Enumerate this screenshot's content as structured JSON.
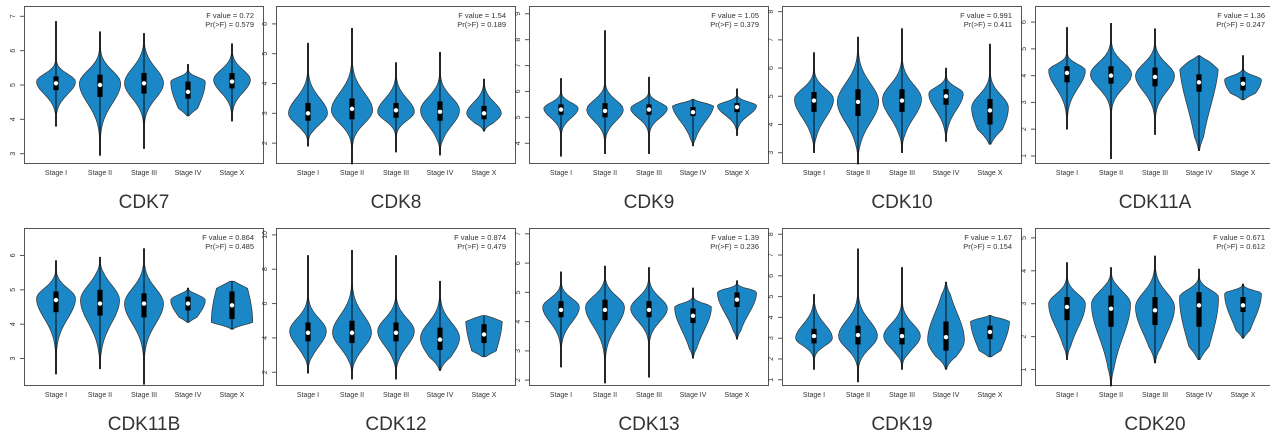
{
  "figure": {
    "colors": {
      "violin_fill": "#1b87c6",
      "violin_stroke": "#333333",
      "box": "#000000",
      "median": "#ffffff",
      "frame": "#555555",
      "text": "#333333"
    },
    "categories": [
      "Stage I",
      "Stage II",
      "Stage III",
      "Stage IV",
      "Stage X"
    ]
  },
  "chart_data": [
    {
      "type": "violin",
      "title": "CDK7",
      "f_value": "F value = 0.72",
      "pr_f": "Pr(>F) = 0.579",
      "categories": [
        "Stage I",
        "Stage II",
        "Stage III",
        "Stage IV",
        "Stage X"
      ],
      "yticks": [
        "3",
        "4",
        "5",
        "6",
        "7"
      ],
      "ylim": [
        2.7,
        7.3
      ],
      "series": [
        {
          "category": "Stage I",
          "min": 3.8,
          "q1": 4.85,
          "median": 5.05,
          "q3": 5.25,
          "max": 6.85,
          "mode": 5.1,
          "width": 0.85
        },
        {
          "category": "Stage II",
          "min": 2.95,
          "q1": 4.65,
          "median": 5.0,
          "q3": 5.3,
          "max": 6.55,
          "mode": 5.05,
          "width": 0.9
        },
        {
          "category": "Stage III",
          "min": 3.15,
          "q1": 4.75,
          "median": 5.05,
          "q3": 5.35,
          "max": 6.5,
          "mode": 5.05,
          "width": 0.85
        },
        {
          "category": "Stage IV",
          "min": 4.1,
          "q1": 4.6,
          "median": 4.8,
          "q3": 5.1,
          "max": 5.6,
          "mode": 5.1,
          "width": 0.75
        },
        {
          "category": "Stage X",
          "min": 3.95,
          "q1": 4.9,
          "median": 5.1,
          "q3": 5.35,
          "max": 6.2,
          "mode": 5.15,
          "width": 0.8
        }
      ]
    },
    {
      "type": "violin",
      "title": "CDK8",
      "f_value": "F value = 1.54",
      "pr_f": "Pr(>F) = 0.189",
      "categories": [
        "Stage I",
        "Stage II",
        "Stage III",
        "Stage IV",
        "Stage X"
      ],
      "yticks": [
        "2",
        "3",
        "4",
        "5",
        "6"
      ],
      "ylim": [
        1.3,
        6.6
      ],
      "series": [
        {
          "category": "Stage I",
          "min": 1.9,
          "q1": 2.75,
          "median": 3.0,
          "q3": 3.35,
          "max": 5.35,
          "mode": 3.0,
          "width": 0.85
        },
        {
          "category": "Stage II",
          "min": 1.3,
          "q1": 2.8,
          "median": 3.15,
          "q3": 3.5,
          "max": 5.85,
          "mode": 3.1,
          "width": 0.9
        },
        {
          "category": "Stage III",
          "min": 1.7,
          "q1": 2.85,
          "median": 3.1,
          "q3": 3.35,
          "max": 4.7,
          "mode": 3.05,
          "width": 0.8
        },
        {
          "category": "Stage IV",
          "min": 1.6,
          "q1": 2.75,
          "median": 3.05,
          "q3": 3.4,
          "max": 5.05,
          "mode": 3.1,
          "width": 0.85
        },
        {
          "category": "Stage X",
          "min": 2.4,
          "q1": 2.8,
          "median": 3.0,
          "q3": 3.25,
          "max": 4.15,
          "mode": 3.0,
          "width": 0.75
        }
      ]
    },
    {
      "type": "violin",
      "title": "CDK9",
      "f_value": "F value = 1.05",
      "pr_f": "Pr(>F) = 0.379",
      "categories": [
        "Stage I",
        "Stage II",
        "Stage III",
        "Stage IV",
        "Stage X"
      ],
      "yticks": [
        "4",
        "5",
        "6",
        "7",
        "8",
        "9"
      ],
      "ylim": [
        3.2,
        9.3
      ],
      "series": [
        {
          "category": "Stage I",
          "min": 3.5,
          "q1": 5.1,
          "median": 5.3,
          "q3": 5.5,
          "max": 6.5,
          "mode": 5.35,
          "width": 0.75
        },
        {
          "category": "Stage II",
          "min": 3.6,
          "q1": 5.0,
          "median": 5.25,
          "q3": 5.55,
          "max": 8.35,
          "mode": 5.3,
          "width": 0.8
        },
        {
          "category": "Stage III",
          "min": 3.6,
          "q1": 5.1,
          "median": 5.3,
          "q3": 5.5,
          "max": 6.55,
          "mode": 5.35,
          "width": 0.8
        },
        {
          "category": "Stage IV",
          "min": 3.9,
          "q1": 5.05,
          "median": 5.2,
          "q3": 5.4,
          "max": 5.7,
          "mode": 5.5,
          "width": 0.9
        },
        {
          "category": "Stage X",
          "min": 4.3,
          "q1": 5.2,
          "median": 5.4,
          "q3": 5.55,
          "max": 6.1,
          "mode": 5.45,
          "width": 0.85
        }
      ]
    },
    {
      "type": "violin",
      "title": "CDK10",
      "f_value": "F value = 0.991",
      "pr_f": "Pr(>F) = 0.411",
      "categories": [
        "Stage I",
        "Stage II",
        "Stage III",
        "Stage IV",
        "Stage X"
      ],
      "yticks": [
        "3",
        "4",
        "5",
        "6",
        "7",
        "8"
      ],
      "ylim": [
        2.6,
        8.2
      ],
      "series": [
        {
          "category": "Stage I",
          "min": 3.0,
          "q1": 4.45,
          "median": 4.85,
          "q3": 5.15,
          "max": 6.55,
          "mode": 4.9,
          "width": 0.85
        },
        {
          "category": "Stage II",
          "min": 2.6,
          "q1": 4.3,
          "median": 4.8,
          "q3": 5.25,
          "max": 7.1,
          "mode": 4.8,
          "width": 0.9
        },
        {
          "category": "Stage III",
          "min": 3.0,
          "q1": 4.45,
          "median": 4.85,
          "q3": 5.25,
          "max": 7.4,
          "mode": 4.9,
          "width": 0.85
        },
        {
          "category": "Stage IV",
          "min": 3.4,
          "q1": 4.7,
          "median": 5.0,
          "q3": 5.25,
          "max": 6.0,
          "mode": 5.1,
          "width": 0.75
        },
        {
          "category": "Stage X",
          "min": 3.3,
          "q1": 4.0,
          "median": 4.5,
          "q3": 4.9,
          "max": 6.85,
          "mode": 4.6,
          "width": 0.8
        }
      ]
    },
    {
      "type": "violin",
      "title": "CDK11A",
      "f_value": "F value = 1.36",
      "pr_f": "Pr(>F) = 0.247",
      "categories": [
        "Stage I",
        "Stage II",
        "Stage III",
        "Stage IV",
        "Stage X"
      ],
      "yticks": [
        "1",
        "2",
        "3",
        "4",
        "5",
        "6"
      ],
      "ylim": [
        0.7,
        6.6
      ],
      "series": [
        {
          "category": "Stage I",
          "min": 2.0,
          "q1": 3.75,
          "median": 4.1,
          "q3": 4.35,
          "max": 5.8,
          "mode": 4.2,
          "width": 0.8
        },
        {
          "category": "Stage II",
          "min": 0.9,
          "q1": 3.7,
          "median": 4.0,
          "q3": 4.35,
          "max": 5.95,
          "mode": 4.05,
          "width": 0.9
        },
        {
          "category": "Stage III",
          "min": 1.8,
          "q1": 3.6,
          "median": 3.95,
          "q3": 4.3,
          "max": 5.75,
          "mode": 4.0,
          "width": 0.85
        },
        {
          "category": "Stage IV",
          "min": 1.2,
          "q1": 3.4,
          "median": 3.75,
          "q3": 4.05,
          "max": 4.75,
          "mode": 4.55,
          "width": 0.85
        },
        {
          "category": "Stage X",
          "min": 3.1,
          "q1": 3.45,
          "median": 3.7,
          "q3": 3.95,
          "max": 4.75,
          "mode": 3.85,
          "width": 0.8
        }
      ]
    },
    {
      "type": "violin",
      "title": "CDK11B",
      "f_value": "F value = 0.864",
      "pr_f": "Pr(>F) = 0.485",
      "categories": [
        "Stage I",
        "Stage II",
        "Stage III",
        "Stage IV",
        "Stage X"
      ],
      "yticks": [
        "3",
        "4",
        "5",
        "6"
      ],
      "ylim": [
        2.2,
        6.8
      ],
      "series": [
        {
          "category": "Stage I",
          "min": 2.55,
          "q1": 4.35,
          "median": 4.7,
          "q3": 4.95,
          "max": 5.85,
          "mode": 4.75,
          "width": 0.85
        },
        {
          "category": "Stage II",
          "min": 2.7,
          "q1": 4.25,
          "median": 4.6,
          "q3": 5.0,
          "max": 5.95,
          "mode": 4.7,
          "width": 0.85
        },
        {
          "category": "Stage III",
          "min": 2.25,
          "q1": 4.2,
          "median": 4.6,
          "q3": 4.9,
          "max": 6.2,
          "mode": 4.6,
          "width": 0.85
        },
        {
          "category": "Stage IV",
          "min": 4.05,
          "q1": 4.4,
          "median": 4.6,
          "q3": 4.8,
          "max": 5.05,
          "mode": 4.7,
          "width": 0.75
        },
        {
          "category": "Stage X",
          "min": 3.85,
          "q1": 4.15,
          "median": 4.55,
          "q3": 4.95,
          "max": 5.25,
          "mode": 4.05,
          "width": 0.9
        }
      ]
    },
    {
      "type": "violin",
      "title": "CDK12",
      "f_value": "F value = 0.874",
      "pr_f": "Pr(>F) = 0.479",
      "categories": [
        "Stage I",
        "Stage II",
        "Stage III",
        "Stage IV",
        "Stage X"
      ],
      "yticks": [
        "2",
        "4",
        "6",
        "8",
        "10"
      ],
      "ylim": [
        1.2,
        10.4
      ],
      "series": [
        {
          "category": "Stage I",
          "min": 1.95,
          "q1": 3.8,
          "median": 4.3,
          "q3": 4.9,
          "max": 8.8,
          "mode": 4.4,
          "width": 0.8
        },
        {
          "category": "Stage II",
          "min": 1.6,
          "q1": 3.7,
          "median": 4.3,
          "q3": 5.0,
          "max": 9.1,
          "mode": 4.3,
          "width": 0.85
        },
        {
          "category": "Stage III",
          "min": 1.6,
          "q1": 3.8,
          "median": 4.3,
          "q3": 4.9,
          "max": 8.8,
          "mode": 4.4,
          "width": 0.8
        },
        {
          "category": "Stage IV",
          "min": 2.1,
          "q1": 3.3,
          "median": 3.9,
          "q3": 4.6,
          "max": 7.3,
          "mode": 4.0,
          "width": 0.85
        },
        {
          "category": "Stage X",
          "min": 2.9,
          "q1": 3.7,
          "median": 4.2,
          "q3": 4.8,
          "max": 5.3,
          "mode": 5.2,
          "width": 0.8
        }
      ]
    },
    {
      "type": "violin",
      "title": "CDK13",
      "f_value": "F value = 1.39",
      "pr_f": "Pr(>F) = 0.236",
      "categories": [
        "Stage I",
        "Stage II",
        "Stage III",
        "Stage IV",
        "Stage X"
      ],
      "yticks": [
        "2",
        "3",
        "4",
        "5",
        "6",
        "7"
      ],
      "ylim": [
        1.8,
        7.2
      ],
      "series": [
        {
          "category": "Stage I",
          "min": 2.45,
          "q1": 4.15,
          "median": 4.4,
          "q3": 4.7,
          "max": 5.7,
          "mode": 4.5,
          "width": 0.8
        },
        {
          "category": "Stage II",
          "min": 1.9,
          "q1": 4.05,
          "median": 4.4,
          "q3": 4.75,
          "max": 5.9,
          "mode": 4.5,
          "width": 0.85
        },
        {
          "category": "Stage III",
          "min": 2.1,
          "q1": 4.15,
          "median": 4.4,
          "q3": 4.7,
          "max": 5.85,
          "mode": 4.45,
          "width": 0.8
        },
        {
          "category": "Stage IV",
          "min": 2.75,
          "q1": 3.95,
          "median": 4.2,
          "q3": 4.45,
          "max": 5.15,
          "mode": 4.5,
          "width": 0.8
        },
        {
          "category": "Stage X",
          "min": 3.4,
          "q1": 4.5,
          "median": 4.75,
          "q3": 5.0,
          "max": 5.4,
          "mode": 5.0,
          "width": 0.85
        }
      ]
    },
    {
      "type": "violin",
      "title": "CDK19",
      "f_value": "F value = 1.67",
      "pr_f": "Pr(>F) = 0.154",
      "categories": [
        "Stage I",
        "Stage II",
        "Stage III",
        "Stage IV",
        "Stage X"
      ],
      "yticks": [
        "1",
        "2",
        "3",
        "4",
        "5",
        "6",
        "7",
        "8"
      ],
      "ylim": [
        0.7,
        8.3
      ],
      "series": [
        {
          "category": "Stage I",
          "min": 1.5,
          "q1": 2.75,
          "median": 3.1,
          "q3": 3.45,
          "max": 5.1,
          "mode": 3.0,
          "width": 0.8
        },
        {
          "category": "Stage II",
          "min": 0.9,
          "q1": 2.7,
          "median": 3.15,
          "q3": 3.6,
          "max": 7.3,
          "mode": 3.1,
          "width": 0.85
        },
        {
          "category": "Stage III",
          "min": 1.5,
          "q1": 2.7,
          "median": 3.1,
          "q3": 3.5,
          "max": 6.4,
          "mode": 3.1,
          "width": 0.8
        },
        {
          "category": "Stage IV",
          "min": 1.5,
          "q1": 2.4,
          "median": 3.05,
          "q3": 3.8,
          "max": 5.7,
          "mode": 2.9,
          "width": 0.8
        },
        {
          "category": "Stage X",
          "min": 2.1,
          "q1": 2.95,
          "median": 3.3,
          "q3": 3.6,
          "max": 4.1,
          "mode": 3.9,
          "width": 0.85
        }
      ]
    },
    {
      "type": "violin",
      "title": "CDK20",
      "f_value": "F value = 0.671",
      "pr_f": "Pr(>F) = 0.612",
      "categories": [
        "Stage I",
        "Stage II",
        "Stage III",
        "Stage IV",
        "Stage X"
      ],
      "yticks": [
        "1",
        "2",
        "3",
        "4",
        "5"
      ],
      "ylim": [
        0.5,
        5.3
      ],
      "series": [
        {
          "category": "Stage I",
          "min": 1.3,
          "q1": 2.5,
          "median": 2.9,
          "q3": 3.2,
          "max": 4.25,
          "mode": 3.0,
          "width": 0.8
        },
        {
          "category": "Stage II",
          "min": 0.5,
          "q1": 2.3,
          "median": 2.85,
          "q3": 3.25,
          "max": 4.1,
          "mode": 3.0,
          "width": 0.85
        },
        {
          "category": "Stage III",
          "min": 1.2,
          "q1": 2.35,
          "median": 2.8,
          "q3": 3.2,
          "max": 4.45,
          "mode": 2.9,
          "width": 0.85
        },
        {
          "category": "Stage IV",
          "min": 1.3,
          "q1": 2.3,
          "median": 2.95,
          "q3": 3.35,
          "max": 4.05,
          "mode": 3.2,
          "width": 0.85
        },
        {
          "category": "Stage X",
          "min": 1.95,
          "q1": 2.75,
          "median": 2.95,
          "q3": 3.2,
          "max": 3.6,
          "mode": 3.3,
          "width": 0.8
        }
      ]
    }
  ]
}
